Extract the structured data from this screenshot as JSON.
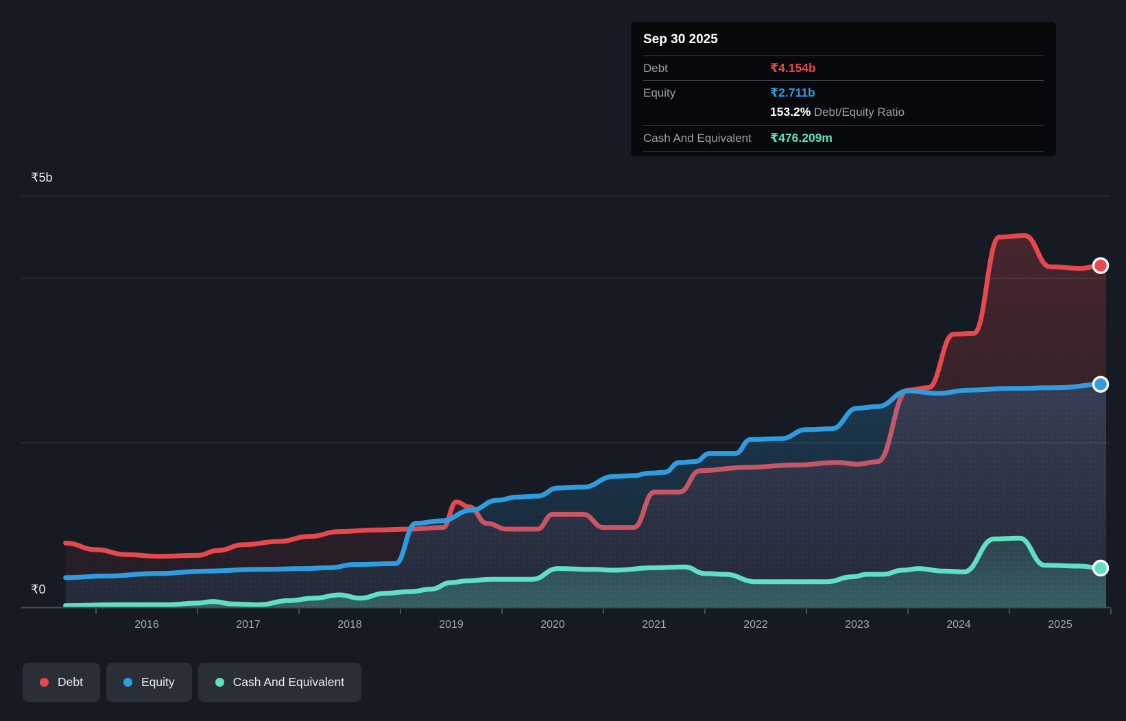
{
  "tooltip": {
    "date": "Sep 30 2025",
    "rows": {
      "debt": {
        "label": "Debt",
        "value": "₹4.154b"
      },
      "equity": {
        "label": "Equity",
        "value": "₹2.711b"
      },
      "ratio": {
        "value": "153.2%",
        "label": "Debt/Equity Ratio"
      },
      "cash": {
        "label": "Cash And Equivalent",
        "value": "₹476.209m"
      }
    }
  },
  "legend": {
    "items": [
      {
        "label": "Debt",
        "color": "#e5484d"
      },
      {
        "label": "Equity",
        "color": "#2f9ce0"
      },
      {
        "label": "Cash And Equivalent",
        "color": "#5fe0c1"
      }
    ]
  },
  "chart_data": {
    "type": "area",
    "unit": "₹ billions",
    "y_axis": {
      "top_label": "₹5b",
      "zero_label": "₹0",
      "min": 0,
      "max": 5,
      "gridlines": [
        5,
        4,
        2,
        0
      ]
    },
    "x_ticks": [
      2016,
      2017,
      2018,
      2019,
      2020,
      2021,
      2022,
      2023,
      2024,
      2025
    ],
    "x_range": [
      2015.7,
      2025.9
    ],
    "legend_position": "bottom-left",
    "series": [
      {
        "name": "Debt",
        "color": "#e5484d",
        "points": [
          [
            2015.7,
            0.78
          ],
          [
            2016.0,
            0.7
          ],
          [
            2016.3,
            0.64
          ],
          [
            2016.6,
            0.62
          ],
          [
            2017.0,
            0.63
          ],
          [
            2017.2,
            0.69
          ],
          [
            2017.45,
            0.76
          ],
          [
            2017.8,
            0.8
          ],
          [
            2018.1,
            0.86
          ],
          [
            2018.4,
            0.92
          ],
          [
            2018.75,
            0.94
          ],
          [
            2019.1,
            0.95
          ],
          [
            2019.42,
            0.97
          ],
          [
            2019.55,
            1.28
          ],
          [
            2019.68,
            1.22
          ],
          [
            2019.85,
            1.02
          ],
          [
            2020.05,
            0.95
          ],
          [
            2020.35,
            0.95
          ],
          [
            2020.5,
            1.13
          ],
          [
            2020.8,
            1.13
          ],
          [
            2021.0,
            0.97
          ],
          [
            2021.3,
            0.97
          ],
          [
            2021.5,
            1.4
          ],
          [
            2021.75,
            1.4
          ],
          [
            2021.95,
            1.66
          ],
          [
            2022.4,
            1.7
          ],
          [
            2022.9,
            1.73
          ],
          [
            2023.3,
            1.76
          ],
          [
            2023.5,
            1.74
          ],
          [
            2023.7,
            1.77
          ],
          [
            2024.0,
            2.64
          ],
          [
            2024.2,
            2.67
          ],
          [
            2024.45,
            3.32
          ],
          [
            2024.65,
            3.33
          ],
          [
            2024.9,
            4.5
          ],
          [
            2025.15,
            4.52
          ],
          [
            2025.4,
            4.14
          ],
          [
            2025.7,
            4.12
          ],
          [
            2025.9,
            4.154
          ]
        ],
        "end_value": 4.154
      },
      {
        "name": "Equity",
        "color": "#2f9ce0",
        "points": [
          [
            2015.7,
            0.36
          ],
          [
            2016.1,
            0.38
          ],
          [
            2016.6,
            0.41
          ],
          [
            2017.1,
            0.44
          ],
          [
            2017.6,
            0.46
          ],
          [
            2018.05,
            0.47
          ],
          [
            2018.3,
            0.48
          ],
          [
            2018.55,
            0.52
          ],
          [
            2018.95,
            0.53
          ],
          [
            2019.15,
            1.02
          ],
          [
            2019.4,
            1.05
          ],
          [
            2019.7,
            1.18
          ],
          [
            2019.95,
            1.3
          ],
          [
            2020.15,
            1.34
          ],
          [
            2020.35,
            1.35
          ],
          [
            2020.55,
            1.45
          ],
          [
            2020.8,
            1.46
          ],
          [
            2021.1,
            1.59
          ],
          [
            2021.3,
            1.6
          ],
          [
            2021.45,
            1.63
          ],
          [
            2021.6,
            1.64
          ],
          [
            2021.75,
            1.76
          ],
          [
            2021.9,
            1.77
          ],
          [
            2022.05,
            1.87
          ],
          [
            2022.3,
            1.87
          ],
          [
            2022.45,
            2.04
          ],
          [
            2022.75,
            2.05
          ],
          [
            2023.0,
            2.16
          ],
          [
            2023.25,
            2.17
          ],
          [
            2023.5,
            2.42
          ],
          [
            2023.7,
            2.44
          ],
          [
            2024.0,
            2.63
          ],
          [
            2024.3,
            2.6
          ],
          [
            2024.6,
            2.64
          ],
          [
            2025.0,
            2.66
          ],
          [
            2025.5,
            2.67
          ],
          [
            2025.9,
            2.711
          ]
        ],
        "end_value": 2.711
      },
      {
        "name": "Cash And Equivalent",
        "color": "#5fe0c1",
        "points": [
          [
            2015.7,
            0.02
          ],
          [
            2016.2,
            0.03
          ],
          [
            2016.7,
            0.03
          ],
          [
            2017.0,
            0.05
          ],
          [
            2017.15,
            0.07
          ],
          [
            2017.35,
            0.04
          ],
          [
            2017.6,
            0.03
          ],
          [
            2017.9,
            0.08
          ],
          [
            2018.15,
            0.11
          ],
          [
            2018.4,
            0.15
          ],
          [
            2018.6,
            0.11
          ],
          [
            2018.85,
            0.17
          ],
          [
            2019.1,
            0.19
          ],
          [
            2019.3,
            0.22
          ],
          [
            2019.5,
            0.3
          ],
          [
            2019.65,
            0.32
          ],
          [
            2019.9,
            0.34
          ],
          [
            2020.3,
            0.34
          ],
          [
            2020.55,
            0.47
          ],
          [
            2020.9,
            0.46
          ],
          [
            2021.1,
            0.45
          ],
          [
            2021.5,
            0.48
          ],
          [
            2021.8,
            0.49
          ],
          [
            2022.0,
            0.41
          ],
          [
            2022.2,
            0.4
          ],
          [
            2022.5,
            0.31
          ],
          [
            2023.2,
            0.31
          ],
          [
            2023.45,
            0.37
          ],
          [
            2023.6,
            0.4
          ],
          [
            2023.75,
            0.4
          ],
          [
            2023.95,
            0.45
          ],
          [
            2024.1,
            0.47
          ],
          [
            2024.35,
            0.44
          ],
          [
            2024.55,
            0.43
          ],
          [
            2024.85,
            0.83
          ],
          [
            2025.1,
            0.84
          ],
          [
            2025.35,
            0.51
          ],
          [
            2025.7,
            0.5
          ],
          [
            2025.9,
            0.476
          ]
        ],
        "end_value": 0.476
      }
    ]
  }
}
